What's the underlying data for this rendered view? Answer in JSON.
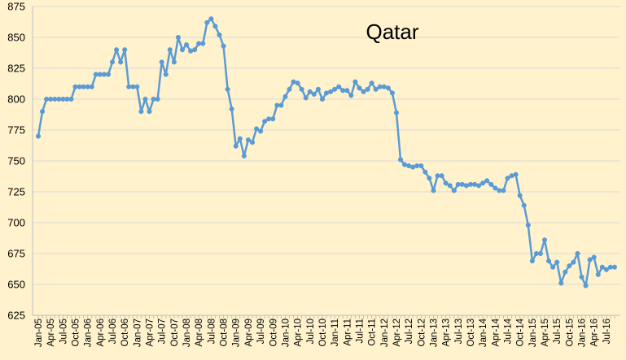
{
  "chart_data": {
    "type": "line",
    "title": "Qatar",
    "xlabel": "",
    "ylabel": "",
    "ylim": [
      625,
      875
    ],
    "yticks": [
      625,
      650,
      675,
      700,
      725,
      750,
      775,
      800,
      825,
      850,
      875
    ],
    "grid": true,
    "legend": "none",
    "line_color": "#5B9BD5",
    "x_tick_labels": [
      "Jan-05",
      "Apr-05",
      "Jul-05",
      "Oct-05",
      "Jan-06",
      "Apr-06",
      "Jul-06",
      "Oct-06",
      "Jan-07",
      "Apr-07",
      "Jul-07",
      "Oct-07",
      "Jan-08",
      "Apr-08",
      "Jul-08",
      "Oct-08",
      "Jan-09",
      "Apr-09",
      "Jul-09",
      "Oct-09",
      "Jan-10",
      "Apr-10",
      "Jul-10",
      "Oct-10",
      "Jan-11",
      "Apr-11",
      "Jul-11",
      "Oct-11",
      "Jan-12",
      "Apr-12",
      "Jul-12",
      "Oct-12",
      "Jan-13",
      "Apr-13",
      "Jul-13",
      "Oct-13",
      "Jan-14",
      "Apr-14",
      "Jul-14",
      "Oct-14",
      "Jan-15",
      "Apr-15",
      "Jul-15",
      "Oct-15",
      "Jan-16",
      "Apr-16",
      "Jul-16"
    ],
    "series": [
      {
        "values": [
          770,
          790,
          800,
          800,
          800,
          800,
          800,
          800,
          800,
          810,
          810,
          810,
          810,
          810,
          820,
          820,
          820,
          820,
          830,
          840,
          830,
          840,
          810,
          810,
          810,
          790,
          800,
          790,
          800,
          800,
          830,
          820,
          840,
          830,
          850,
          840,
          844,
          839,
          840,
          845,
          845,
          862,
          865,
          859,
          852,
          843,
          808,
          792,
          762,
          768,
          754,
          767,
          765,
          776,
          774,
          782,
          784,
          784,
          795,
          795,
          802,
          808,
          814,
          813,
          808,
          801,
          806,
          804,
          808,
          800,
          805,
          806,
          808,
          810,
          807,
          807,
          803,
          814,
          809,
          806,
          808,
          813,
          808,
          810,
          810,
          809,
          805,
          789,
          751,
          747,
          746,
          745,
          746,
          746,
          741,
          736,
          726,
          738,
          738,
          732,
          730,
          726,
          731,
          731,
          730,
          731,
          731,
          730,
          732,
          734,
          731,
          728,
          726,
          726,
          736,
          738,
          739,
          722,
          714,
          698,
          669,
          675,
          675,
          686,
          669,
          664,
          668,
          651,
          660,
          665,
          668,
          675,
          656,
          649,
          670,
          672,
          658,
          664,
          662,
          664,
          664
        ]
      }
    ]
  }
}
